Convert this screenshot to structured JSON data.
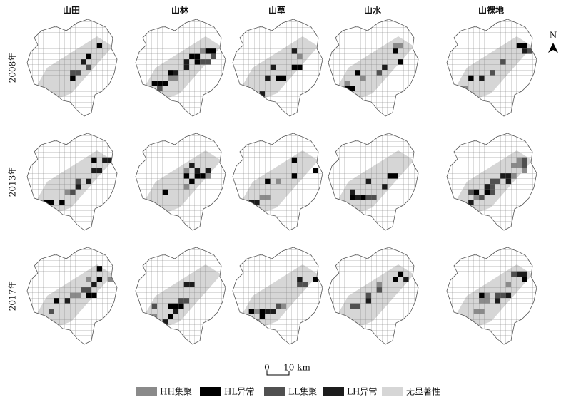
{
  "columns": [
    "山田",
    "山林",
    "山草",
    "山水",
    "山裸地"
  ],
  "rows": [
    "2008年",
    "2013年",
    "2017年"
  ],
  "north": "N",
  "scale_bar": {
    "labels": [
      "0",
      "10 km"
    ]
  },
  "legend": [
    {
      "label": "HH集聚",
      "color": "#8a8a8a"
    },
    {
      "label": "HL异常",
      "color": "#000000"
    },
    {
      "label": "LL集聚",
      "color": "#505050"
    },
    {
      "label": "LH异常",
      "color": "#1c1c1c"
    },
    {
      "label": "无显著性",
      "color": "#d6d6d6"
    }
  ]
}
